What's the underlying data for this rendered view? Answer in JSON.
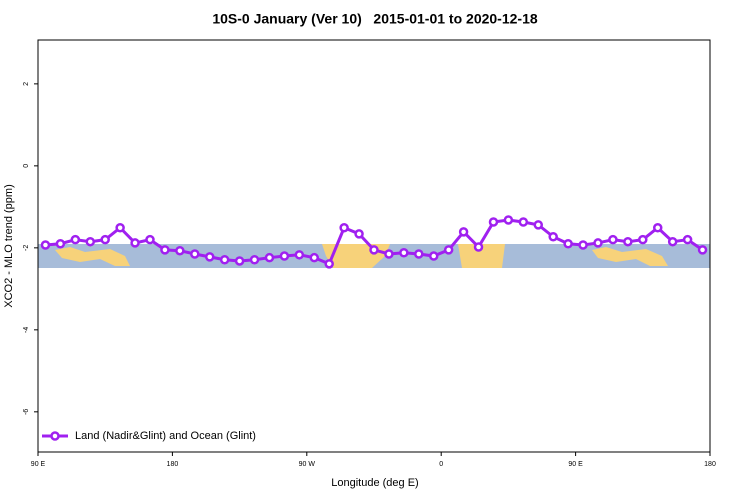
{
  "chart_data": {
    "type": "line",
    "title": "10S-0 January (Ver 10)   2015-01-01 to 2020-12-18",
    "x_label": "Longitude (deg E)",
    "y_label": "XCO2 - MLO trend (ppm)",
    "x": [
      95,
      105,
      115,
      125,
      135,
      145,
      155,
      165,
      175,
      185,
      195,
      205,
      215,
      225,
      235,
      245,
      255,
      265,
      275,
      285,
      295,
      305,
      315,
      325,
      335,
      345,
      355,
      365,
      375,
      385,
      395,
      405,
      415,
      425,
      435,
      445,
      455,
      465,
      475,
      485,
      495,
      505,
      515,
      525,
      535
    ],
    "series": [
      {
        "name": "Land (Nadir&Glint) and Ocean (Glint)",
        "color": "#a020f0",
        "values": [
          -1.93,
          -1.9,
          -1.8,
          -1.85,
          -1.8,
          -1.51,
          -1.88,
          -1.8,
          -2.05,
          -2.07,
          -2.15,
          -2.22,
          -2.29,
          -2.32,
          -2.29,
          -2.24,
          -2.2,
          -2.17,
          -2.24,
          -2.39,
          -1.51,
          -1.66,
          -2.05,
          -2.15,
          -2.12,
          -2.15,
          -2.2,
          -2.05,
          -1.61,
          -1.98,
          -1.37,
          -1.32,
          -1.37,
          -1.44,
          -1.73,
          -1.9,
          -1.93,
          -1.88,
          -1.8,
          -1.85,
          -1.8,
          -1.51,
          -1.85,
          -1.8,
          -2.05
        ]
      }
    ],
    "xlim": [
      90,
      540
    ],
    "xticks": [
      {
        "value": 90,
        "label": "90 E"
      },
      180,
      {
        "value": 270,
        "label": "90 W"
      },
      {
        "value": 360,
        "label": "0"
      },
      {
        "value": 450,
        "label": "90 E"
      },
      {
        "value": 540,
        "label": "180"
      }
    ],
    "ylim": [
      -6.98,
      3.07
    ],
    "yticks": [
      2,
      0,
      -2,
      -4,
      -6
    ],
    "legend": "bottom-left"
  }
}
